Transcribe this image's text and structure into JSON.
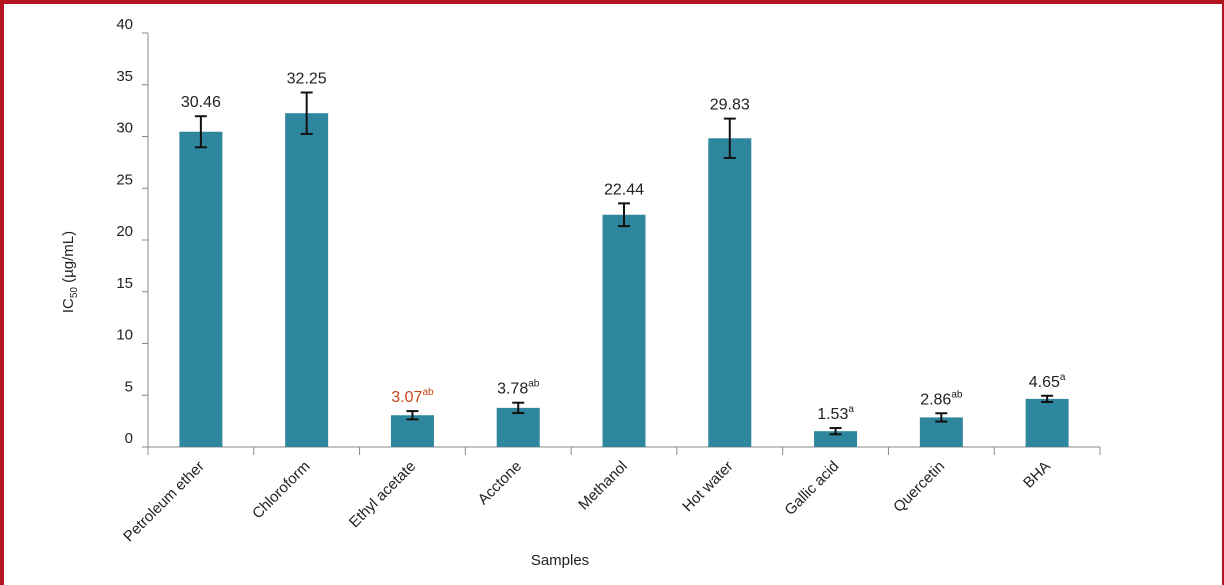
{
  "chart_data": {
    "type": "bar",
    "xlabel": "Samples",
    "ylabel_main": "IC",
    "ylabel_sub": "50",
    "ylabel_rest": " (µg/mL)",
    "ylim": [
      0,
      40
    ],
    "yticks": [
      "0",
      "5",
      "10",
      "15",
      "20",
      "25",
      "30",
      "35",
      "40"
    ],
    "categories": [
      "Petroleum ether",
      "Chloroform",
      "Ethyl acetate",
      "Acctone",
      "Methanol",
      "Hot water",
      "Gallic acid",
      "Quercetin",
      "BHA"
    ],
    "values": [
      30.46,
      32.25,
      3.07,
      3.78,
      22.44,
      29.83,
      1.53,
      2.86,
      4.65
    ],
    "errors": [
      1.5,
      2.0,
      0.4,
      0.5,
      1.1,
      1.9,
      0.3,
      0.4,
      0.3
    ],
    "labels": [
      "30.46",
      "32.25",
      "3.07",
      "3.78",
      "22.44",
      "29.83",
      "1.53",
      "2.86",
      "4.65"
    ],
    "label_superscripts": [
      "",
      "",
      "ab",
      "ab",
      "",
      "",
      "a",
      "ab",
      "a"
    ],
    "highlight_index": 2,
    "grid": false,
    "legend": "none",
    "colors": {
      "bar": "#2e879e",
      "highlight_label": "#c8441a",
      "text": "#222222",
      "axis": "#888888",
      "frame": "#b3141d"
    }
  }
}
